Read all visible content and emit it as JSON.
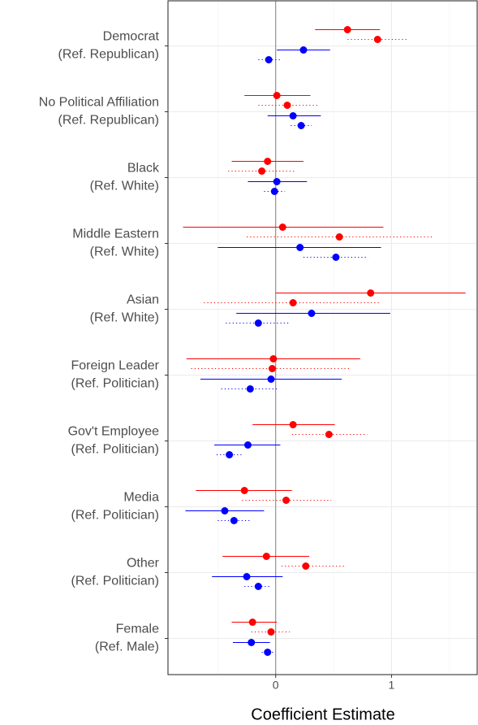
{
  "chart_data": {
    "type": "coefplot",
    "x_label": "Coefficient Estimate",
    "categories": [
      [
        "Democrat",
        "(Ref. Republican)"
      ],
      [
        "No Political Affiliation",
        "(Ref. Republican)"
      ],
      [
        "Black",
        "(Ref. White)"
      ],
      [
        "Middle Eastern",
        "(Ref. White)"
      ],
      [
        "Asian",
        "(Ref. White)"
      ],
      [
        "Foreign Leader",
        "(Ref. Politician)"
      ],
      [
        "Gov't Employee",
        "(Ref. Politician)"
      ],
      [
        "Media",
        "(Ref. Politician)"
      ],
      [
        "Other",
        "(Ref. Politician)"
      ],
      [
        "Female",
        "(Ref. Male)"
      ]
    ],
    "series": [
      {
        "color": "#ff0000",
        "linestyle": "solid",
        "values": [
          0.62,
          0.01,
          -0.07,
          0.06,
          0.82,
          -0.02,
          0.15,
          -0.27,
          -0.08,
          -0.2
        ],
        "lower": [
          0.34,
          -0.27,
          -0.38,
          -0.8,
          0.0,
          -0.77,
          -0.2,
          -0.69,
          -0.46,
          -0.38
        ],
        "upper": [
          0.9,
          0.3,
          0.24,
          0.93,
          1.64,
          0.73,
          0.51,
          0.14,
          0.29,
          0.01
        ]
      },
      {
        "color": "#ff0000",
        "linestyle": "dotted",
        "values": [
          0.88,
          0.1,
          -0.12,
          0.55,
          0.15,
          -0.03,
          0.46,
          0.09,
          0.26,
          -0.04
        ],
        "lower": [
          0.62,
          -0.15,
          -0.41,
          -0.25,
          -0.62,
          -0.73,
          0.14,
          -0.29,
          0.05,
          -0.21
        ],
        "upper": [
          1.15,
          0.37,
          0.17,
          1.35,
          0.91,
          0.65,
          0.79,
          0.48,
          0.61,
          0.12
        ]
      },
      {
        "color": "#0000ff",
        "linestyle": "solid",
        "values": [
          0.24,
          0.15,
          0.01,
          0.21,
          0.31,
          -0.04,
          -0.24,
          -0.44,
          -0.25,
          -0.21
        ],
        "lower": [
          0.01,
          -0.07,
          -0.24,
          -0.5,
          -0.34,
          -0.65,
          -0.53,
          -0.78,
          -0.55,
          -0.37
        ],
        "upper": [
          0.47,
          0.39,
          0.27,
          0.91,
          0.99,
          0.57,
          0.04,
          -0.1,
          0.06,
          -0.05
        ]
      },
      {
        "color": "#0000ff",
        "linestyle": "dotted",
        "values": [
          -0.06,
          0.22,
          -0.01,
          0.52,
          -0.15,
          -0.22,
          -0.4,
          -0.36,
          -0.15,
          -0.07
        ],
        "lower": [
          -0.15,
          0.13,
          -0.1,
          0.24,
          -0.43,
          -0.47,
          -0.51,
          -0.5,
          -0.27,
          -0.12
        ],
        "upper": [
          0.04,
          0.31,
          0.08,
          0.8,
          0.11,
          0.03,
          -0.29,
          -0.22,
          -0.04,
          -0.02
        ]
      }
    ],
    "xlim": [
      -0.93,
      1.74
    ],
    "xticks": [
      0,
      1
    ],
    "x_minor_grid": [
      -0.5,
      0.5,
      1.5
    ],
    "grid": true,
    "xline": 0
  }
}
